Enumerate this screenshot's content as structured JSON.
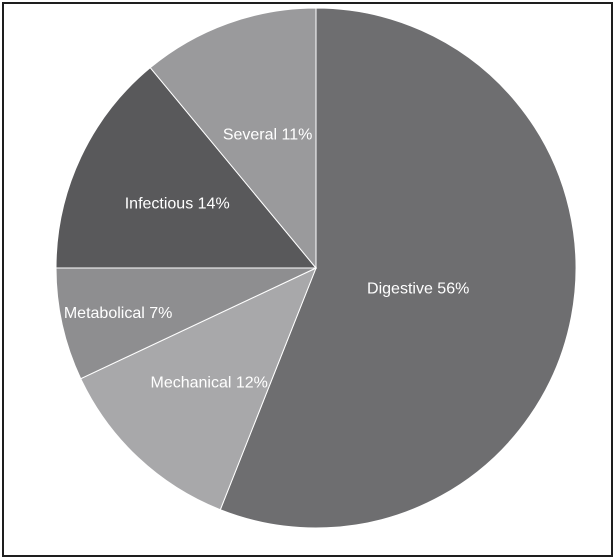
{
  "chart_data": {
    "type": "pie",
    "title": "",
    "slices": [
      {
        "label": "Digestive 56%",
        "name": "Digestive",
        "value": 56,
        "color": "#6e6e70"
      },
      {
        "label": "Mechanical 12%",
        "name": "Mechanical",
        "value": 12,
        "color": "#a8a8aa"
      },
      {
        "label": "Metabolical 7%",
        "name": "Metabolical",
        "value": 7,
        "color": "#8e8e90"
      },
      {
        "label": "Infectious 14%",
        "name": "Infectious",
        "value": 14,
        "color": "#59595b"
      },
      {
        "label": "Several 11%",
        "name": "Several",
        "value": 11,
        "color": "#9a9a9c"
      }
    ],
    "start": "top",
    "direction": "clockwise",
    "legend": "none",
    "slice_border_color": "#ffffff"
  }
}
